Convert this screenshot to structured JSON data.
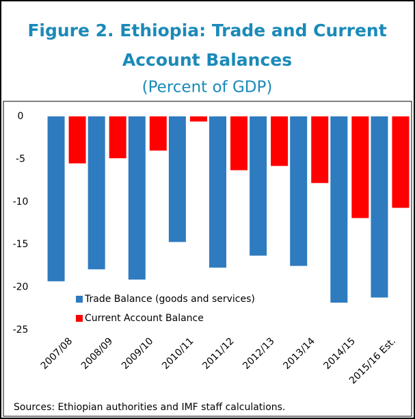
{
  "chart_data": {
    "type": "bar",
    "title_lines": [
      "Figure 2. Ethiopia: Trade and Current",
      "Account Balances"
    ],
    "subtitle": "(Percent of GDP)",
    "categories": [
      "2007/08",
      "2008/09",
      "2009/10",
      "2010/11",
      "2011/12",
      "2012/13",
      "2013/14",
      "2014/15",
      "2015/16 Est."
    ],
    "series": [
      {
        "name": "Trade Balance  (goods and services)",
        "color": "#2e7bbf",
        "values": [
          -19.3,
          -17.9,
          -19.1,
          -14.7,
          -17.7,
          -16.3,
          -17.5,
          -21.8,
          -21.2
        ]
      },
      {
        "name": "Current Account Balance",
        "color": "#ff0000",
        "values": [
          -5.5,
          -4.9,
          -4.0,
          -0.6,
          -6.3,
          -5.8,
          -7.8,
          -11.9,
          -10.7
        ]
      }
    ],
    "ylim": [
      -25,
      0
    ],
    "yticks": [
      0,
      -5,
      -10,
      -15,
      -20,
      -25
    ],
    "source": "Sources: Ethiopian authorities and IMF staff calculations."
  }
}
